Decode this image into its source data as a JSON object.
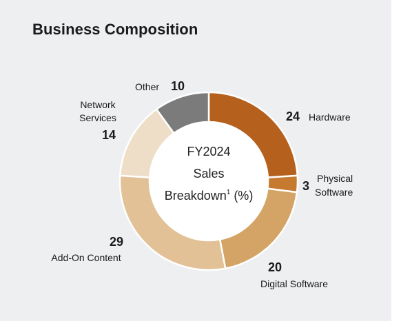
{
  "title": "Business Composition",
  "chart_data": {
    "type": "pie",
    "center_label": [
      "FY2024",
      "Sales",
      "Breakdown",
      "1",
      " (%)"
    ],
    "slices": [
      {
        "label": "Hardware",
        "value": 24,
        "color": "#b5601d"
      },
      {
        "label": "Physical Software",
        "label_lines": [
          "Physical",
          "Software"
        ],
        "value": 3,
        "color": "#c67a30"
      },
      {
        "label": "Digital Software",
        "value": 20,
        "color": "#d4a466"
      },
      {
        "label": "Add-On Content",
        "value": 29,
        "color": "#e2c197"
      },
      {
        "label": "Network Services",
        "label_lines": [
          "Network",
          "Services"
        ],
        "value": 14,
        "color": "#eedec8"
      },
      {
        "label": "Other",
        "value": 10,
        "color": "#7b7b7b"
      }
    ]
  }
}
